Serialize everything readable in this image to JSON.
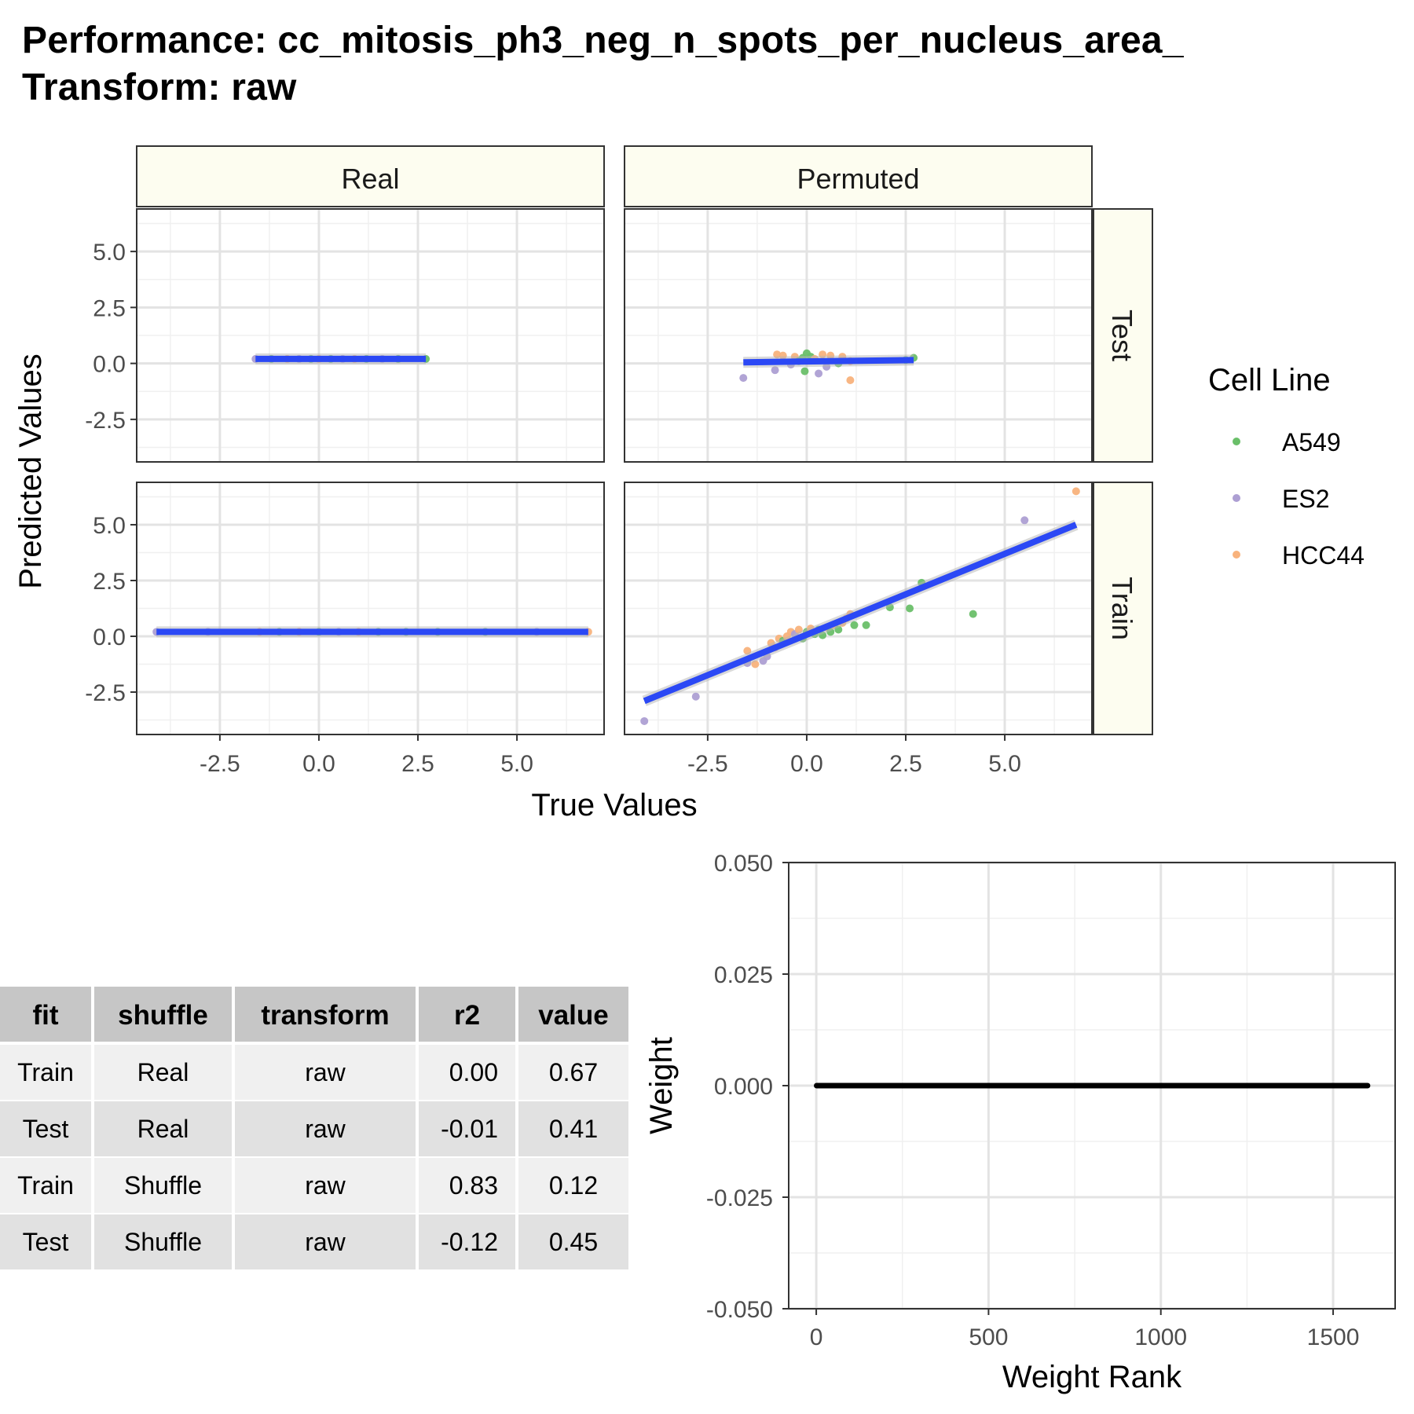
{
  "title_line1": "Performance: cc_mitosis_ph3_neg_n_spots_per_nucleus_area_",
  "title_line2": "Transform: raw",
  "chart_data": [
    {
      "type": "scatter",
      "xlabel": "True Values",
      "ylabel": "Predicted Values",
      "xlim": [
        -4.6,
        7.2
      ],
      "ylim": [
        -4.4,
        6.9
      ],
      "x_ticks": [
        "-2.5",
        "0.0",
        "2.5",
        "5.0"
      ],
      "y_ticks": [
        "-2.5",
        "0.0",
        "2.5",
        "5.0"
      ],
      "columns": [
        "Real",
        "Permuted"
      ],
      "rows": [
        "Test",
        "Train"
      ],
      "legend": {
        "title": "Cell Line",
        "placement": "right",
        "entries": [
          {
            "name": "A549",
            "color": "#6abf69"
          },
          {
            "name": "ES2",
            "color": "#ad9fd3"
          },
          {
            "name": "HCC44",
            "color": "#f8b27c"
          }
        ]
      },
      "fit_line_color": "#2b48f5",
      "panels": [
        {
          "column": "Real",
          "row": "Test",
          "fit": [
            [
              -1.6,
              0.2
            ],
            [
              2.7,
              0.2
            ]
          ],
          "points": [
            {
              "x": -1.6,
              "y": 0.2,
              "c": "ES2"
            },
            {
              "x": -1.2,
              "y": 0.2,
              "c": "A549"
            },
            {
              "x": -0.8,
              "y": 0.2,
              "c": "HCC44"
            },
            {
              "x": -0.5,
              "y": 0.2,
              "c": "ES2"
            },
            {
              "x": -0.2,
              "y": 0.2,
              "c": "A549"
            },
            {
              "x": 0.0,
              "y": 0.2,
              "c": "HCC44"
            },
            {
              "x": 0.3,
              "y": 0.2,
              "c": "A549"
            },
            {
              "x": 0.6,
              "y": 0.2,
              "c": "ES2"
            },
            {
              "x": 0.9,
              "y": 0.2,
              "c": "HCC44"
            },
            {
              "x": 1.2,
              "y": 0.2,
              "c": "A549"
            },
            {
              "x": 1.6,
              "y": 0.2,
              "c": "ES2"
            },
            {
              "x": 2.0,
              "y": 0.2,
              "c": "A549"
            },
            {
              "x": 2.7,
              "y": 0.2,
              "c": "A549"
            }
          ]
        },
        {
          "column": "Permuted",
          "row": "Test",
          "fit": [
            [
              -1.6,
              0.05
            ],
            [
              2.7,
              0.15
            ]
          ],
          "points": [
            {
              "x": -1.6,
              "y": -0.65,
              "c": "ES2"
            },
            {
              "x": -0.8,
              "y": -0.3,
              "c": "ES2"
            },
            {
              "x": -0.75,
              "y": 0.4,
              "c": "HCC44"
            },
            {
              "x": -0.6,
              "y": 0.35,
              "c": "HCC44"
            },
            {
              "x": -0.4,
              "y": -0.05,
              "c": "ES2"
            },
            {
              "x": -0.3,
              "y": 0.3,
              "c": "HCC44"
            },
            {
              "x": -0.2,
              "y": 0.1,
              "c": "A549"
            },
            {
              "x": -0.1,
              "y": 0.25,
              "c": "A549"
            },
            {
              "x": -0.05,
              "y": -0.35,
              "c": "A549"
            },
            {
              "x": 0.0,
              "y": 0.45,
              "c": "A549"
            },
            {
              "x": 0.1,
              "y": 0.3,
              "c": "A549"
            },
            {
              "x": 0.2,
              "y": 0.2,
              "c": "HCC44"
            },
            {
              "x": 0.3,
              "y": -0.45,
              "c": "ES2"
            },
            {
              "x": 0.4,
              "y": 0.4,
              "c": "HCC44"
            },
            {
              "x": 0.5,
              "y": -0.15,
              "c": "ES2"
            },
            {
              "x": 0.6,
              "y": 0.35,
              "c": "HCC44"
            },
            {
              "x": 0.8,
              "y": 0.0,
              "c": "A549"
            },
            {
              "x": 0.9,
              "y": 0.3,
              "c": "HCC44"
            },
            {
              "x": 1.1,
              "y": 0.1,
              "c": "HCC44"
            },
            {
              "x": 1.1,
              "y": -0.75,
              "c": "HCC44"
            },
            {
              "x": 2.5,
              "y": 0.15,
              "c": "A549"
            },
            {
              "x": 2.7,
              "y": 0.25,
              "c": "A549"
            }
          ]
        },
        {
          "column": "Real",
          "row": "Train",
          "fit": [
            [
              -4.1,
              0.2
            ],
            [
              6.8,
              0.2
            ]
          ],
          "points": [
            {
              "x": -4.1,
              "y": 0.2,
              "c": "ES2"
            },
            {
              "x": -2.8,
              "y": 0.2,
              "c": "ES2"
            },
            {
              "x": -1.5,
              "y": 0.2,
              "c": "HCC44"
            },
            {
              "x": -1.0,
              "y": 0.2,
              "c": "A549"
            },
            {
              "x": -0.5,
              "y": 0.2,
              "c": "HCC44"
            },
            {
              "x": 0.0,
              "y": 0.2,
              "c": "A549"
            },
            {
              "x": 0.5,
              "y": 0.2,
              "c": "ES2"
            },
            {
              "x": 1.0,
              "y": 0.2,
              "c": "HCC44"
            },
            {
              "x": 1.5,
              "y": 0.2,
              "c": "A549"
            },
            {
              "x": 2.2,
              "y": 0.2,
              "c": "A549"
            },
            {
              "x": 3.0,
              "y": 0.2,
              "c": "A549"
            },
            {
              "x": 4.2,
              "y": 0.2,
              "c": "A549"
            },
            {
              "x": 5.5,
              "y": 0.2,
              "c": "ES2"
            },
            {
              "x": 6.8,
              "y": 0.2,
              "c": "HCC44"
            }
          ]
        },
        {
          "column": "Permuted",
          "row": "Train",
          "fit": [
            [
              -4.1,
              -2.9
            ],
            [
              6.8,
              5.0
            ]
          ],
          "points": [
            {
              "x": -4.1,
              "y": -3.8,
              "c": "ES2"
            },
            {
              "x": -2.8,
              "y": -2.7,
              "c": "ES2"
            },
            {
              "x": -1.5,
              "y": -0.65,
              "c": "HCC44"
            },
            {
              "x": -1.5,
              "y": -1.2,
              "c": "ES2"
            },
            {
              "x": -1.3,
              "y": -1.25,
              "c": "HCC44"
            },
            {
              "x": -1.1,
              "y": -1.1,
              "c": "ES2"
            },
            {
              "x": -1.0,
              "y": -0.9,
              "c": "ES2"
            },
            {
              "x": -0.9,
              "y": -0.3,
              "c": "HCC44"
            },
            {
              "x": -0.8,
              "y": -0.5,
              "c": "HCC44"
            },
            {
              "x": -0.7,
              "y": -0.1,
              "c": "HCC44"
            },
            {
              "x": -0.6,
              "y": -0.2,
              "c": "A549"
            },
            {
              "x": -0.5,
              "y": 0.0,
              "c": "HCC44"
            },
            {
              "x": -0.4,
              "y": 0.2,
              "c": "HCC44"
            },
            {
              "x": -0.3,
              "y": 0.1,
              "c": "ES2"
            },
            {
              "x": -0.2,
              "y": 0.3,
              "c": "HCC44"
            },
            {
              "x": -0.1,
              "y": -0.1,
              "c": "A549"
            },
            {
              "x": 0.0,
              "y": 0.2,
              "c": "A549"
            },
            {
              "x": 0.1,
              "y": 0.35,
              "c": "HCC44"
            },
            {
              "x": 0.2,
              "y": 0.1,
              "c": "A549"
            },
            {
              "x": 0.3,
              "y": 0.3,
              "c": "A549"
            },
            {
              "x": 0.4,
              "y": 0.05,
              "c": "A549"
            },
            {
              "x": 0.5,
              "y": 0.4,
              "c": "HCC44"
            },
            {
              "x": 0.6,
              "y": 0.2,
              "c": "A549"
            },
            {
              "x": 0.7,
              "y": 0.5,
              "c": "HCC44"
            },
            {
              "x": 0.8,
              "y": 0.3,
              "c": "A549"
            },
            {
              "x": 0.9,
              "y": 0.6,
              "c": "HCC44"
            },
            {
              "x": 1.0,
              "y": 0.8,
              "c": "HCC44"
            },
            {
              "x": 1.1,
              "y": 1.0,
              "c": "HCC44"
            },
            {
              "x": 1.2,
              "y": 0.5,
              "c": "A549"
            },
            {
              "x": 1.5,
              "y": 0.5,
              "c": "A549"
            },
            {
              "x": 2.1,
              "y": 1.3,
              "c": "A549"
            },
            {
              "x": 2.6,
              "y": 1.25,
              "c": "A549"
            },
            {
              "x": 2.9,
              "y": 2.4,
              "c": "A549"
            },
            {
              "x": 4.2,
              "y": 1.0,
              "c": "A549"
            },
            {
              "x": 5.5,
              "y": 5.2,
              "c": "ES2"
            },
            {
              "x": 6.8,
              "y": 6.5,
              "c": "HCC44"
            }
          ]
        }
      ]
    },
    {
      "type": "table",
      "columns": [
        "fit",
        "shuffle",
        "transform",
        "r2",
        "value"
      ],
      "rows": [
        [
          "Train",
          "Real",
          "raw",
          "0.00",
          "0.67"
        ],
        [
          "Test",
          "Real",
          "raw",
          "-0.01",
          "0.41"
        ],
        [
          "Train",
          "Shuffle",
          "raw",
          "0.83",
          "0.12"
        ],
        [
          "Test",
          "Shuffle",
          "raw",
          "-0.12",
          "0.45"
        ]
      ],
      "header_color": "#c6c6c6",
      "row_colors": [
        "#f0f0f0",
        "#e1e1e1"
      ]
    },
    {
      "type": "line",
      "xlabel": "Weight Rank",
      "ylabel": "Weight",
      "xlim": [
        -80,
        1680
      ],
      "ylim": [
        -0.05,
        0.05
      ],
      "x_ticks": [
        "0",
        "500",
        "1000",
        "1500"
      ],
      "y_ticks": [
        "0.050",
        "0.025",
        "0.000",
        "-0.025",
        "-0.050"
      ],
      "series": [
        {
          "x": [
            1,
            1600
          ],
          "y": [
            0.0,
            0.0
          ],
          "color": "#000000"
        }
      ]
    }
  ]
}
